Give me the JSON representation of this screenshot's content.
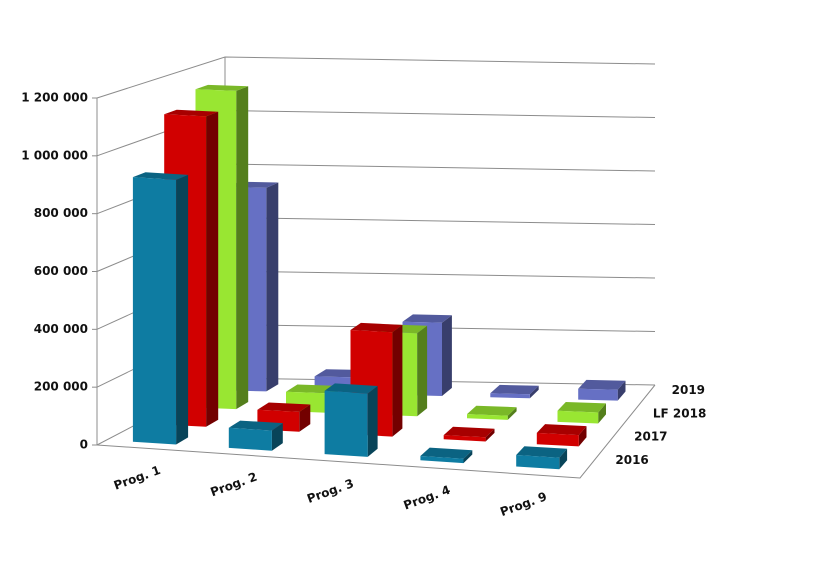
{
  "chart_data": {
    "type": "bar3d",
    "categories": [
      "Prog. 1",
      "Prog. 2",
      "Prog. 3",
      "Prog. 4",
      "Prog. 9"
    ],
    "series": [
      {
        "name": "2016",
        "color": "#0e7ca2",
        "values": [
          920000,
          70000,
          220000,
          15000,
          40000
        ]
      },
      {
        "name": "2017",
        "color": "#d10000",
        "values": [
          1100000,
          70000,
          370000,
          15000,
          40000
        ]
      },
      {
        "name": "LF  2018",
        "color": "#99e632",
        "values": [
          1150000,
          70000,
          300000,
          15000,
          40000
        ]
      },
      {
        "name": "2019",
        "color": "#6670c4",
        "values": [
          750000,
          60000,
          270000,
          15000,
          40000
        ]
      }
    ],
    "ylim": [
      0,
      1200000
    ],
    "yticks": [
      0,
      {
        "value": 200000,
        "label": "200 000"
      },
      {
        "value": 400000,
        "label": "400 000"
      },
      {
        "value": 600000,
        "label": "600 000"
      },
      {
        "value": 800000,
        "label": "800 000"
      },
      {
        "value": 1000000,
        "label": "1 000 000"
      },
      {
        "value": 1200000,
        "label": "1 200 000"
      }
    ],
    "grid": true
  }
}
